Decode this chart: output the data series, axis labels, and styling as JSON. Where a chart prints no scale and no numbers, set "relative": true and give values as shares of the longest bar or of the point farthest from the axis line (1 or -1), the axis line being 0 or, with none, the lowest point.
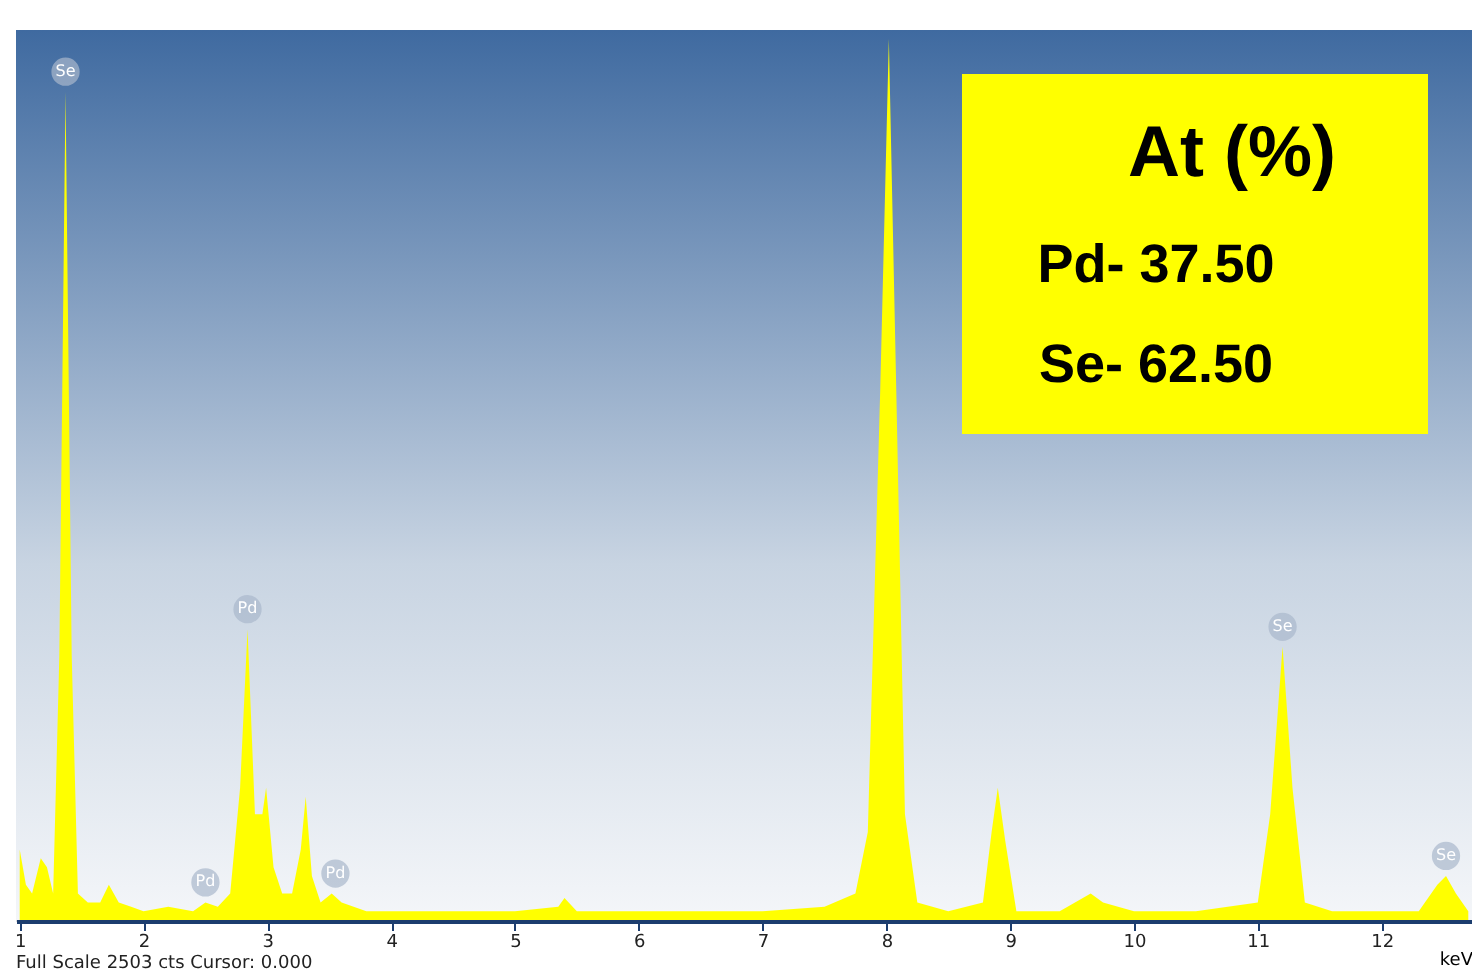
{
  "chart_data": {
    "type": "area",
    "relative": true,
    "xlabel": "keV",
    "color": "#ffff00",
    "x": [
      1.0,
      1.05,
      1.1,
      1.17,
      1.22,
      1.27,
      1.32,
      1.37,
      1.42,
      1.47,
      1.55,
      1.65,
      1.72,
      1.8,
      1.9,
      2.0,
      2.2,
      2.4,
      2.5,
      2.6,
      2.7,
      2.78,
      2.84,
      2.9,
      2.96,
      2.99,
      3.05,
      3.12,
      3.2,
      3.27,
      3.31,
      3.36,
      3.43,
      3.52,
      3.6,
      3.8,
      4.0,
      4.5,
      5.0,
      5.35,
      5.4,
      5.5,
      6.0,
      6.5,
      7.0,
      7.5,
      7.75,
      7.85,
      7.95,
      8.02,
      8.08,
      8.15,
      8.25,
      8.5,
      8.78,
      8.85,
      8.9,
      8.96,
      9.05,
      9.4,
      9.65,
      9.75,
      10.0,
      10.5,
      11.0,
      11.1,
      11.2,
      11.28,
      11.38,
      11.6,
      12.0,
      12.3,
      12.45,
      12.52,
      12.6,
      12.7
    ],
    "values": [
      0.08,
      0.04,
      0.03,
      0.07,
      0.06,
      0.03,
      0.3,
      0.94,
      0.3,
      0.03,
      0.02,
      0.02,
      0.04,
      0.02,
      0.015,
      0.01,
      0.015,
      0.01,
      0.02,
      0.015,
      0.03,
      0.15,
      0.33,
      0.12,
      0.12,
      0.15,
      0.06,
      0.03,
      0.03,
      0.08,
      0.14,
      0.05,
      0.02,
      0.03,
      0.02,
      0.01,
      0.01,
      0.01,
      0.01,
      0.015,
      0.025,
      0.01,
      0.01,
      0.01,
      0.01,
      0.015,
      0.03,
      0.1,
      0.6,
      1.0,
      0.6,
      0.12,
      0.02,
      0.01,
      0.02,
      0.1,
      0.15,
      0.09,
      0.01,
      0.01,
      0.03,
      0.02,
      0.01,
      0.01,
      0.02,
      0.12,
      0.31,
      0.15,
      0.02,
      0.01,
      0.01,
      0.01,
      0.04,
      0.05,
      0.03,
      0.01
    ],
    "xlim": [
      0.97,
      12.73
    ],
    "xticks": [
      1,
      2,
      3,
      4,
      5,
      6,
      7,
      8,
      9,
      10,
      11,
      12
    ],
    "annotations": [
      "At (%)",
      "Pd- 37.50",
      "Se- 62.50",
      "Full Scale 2503 cts Cursor: 0.000",
      {
        "text": "Se",
        "x": 1.37,
        "y": 0.94
      },
      {
        "text": "Pd",
        "x": 2.84,
        "y": 0.33
      },
      {
        "text": "Pd",
        "x": 2.5,
        "y": 0.02
      },
      {
        "text": "Pd",
        "x": 3.55,
        "y": 0.03
      },
      {
        "text": "Se",
        "x": 11.2,
        "y": 0.31
      },
      {
        "text": "Se",
        "x": 12.52,
        "y": 0.05
      }
    ]
  }
}
